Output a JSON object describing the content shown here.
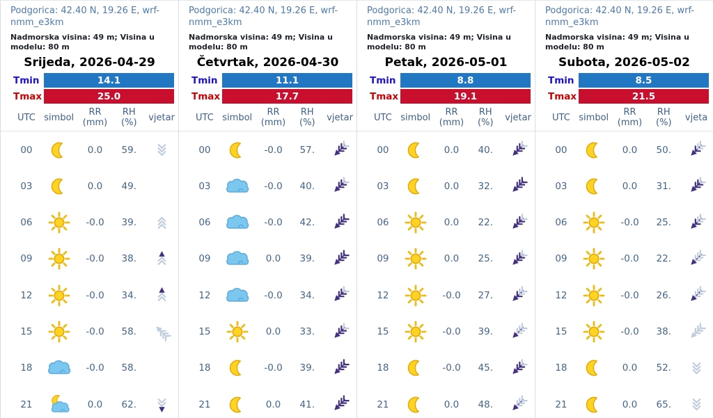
{
  "labels": {
    "location": "Podgorica: 42.40 N, 19.26 E, wrf-nmm_e3km",
    "elevation": "Nadmorska visina: 49 m; Visina u modelu: 80 m",
    "tmin": "Tmin",
    "tmax": "Tmax",
    "utc": "UTC",
    "symbol": "simbol",
    "rr_line1": "RR",
    "rr_line2": "(mm)",
    "rh_line1": "RH",
    "rh_line2": "(%)"
  },
  "colors": {
    "location_text": "#4d79ad",
    "tmin_label": "#1a12cc",
    "tmax_label": "#cc0000",
    "tmin_bar": "#2277c3",
    "tmax_bar": "#c8102e",
    "table_text": "#44658a",
    "sun_fill": "#ffd321",
    "sun_stroke": "#e2a90b",
    "sun_ray": "#eebb10",
    "cloud_fill": "#7cc7ef",
    "cloud_stroke": "#58abdc",
    "wind_light": "#bfccdd",
    "wind_dark": "#43307e"
  },
  "days": [
    {
      "title": "Srijeda, 2026-04-29",
      "tmin": "14.1",
      "tmax": "25.0",
      "wind_header": "vjetar",
      "rows": [
        {
          "utc": "00",
          "icon": "moon",
          "rr": "0.0",
          "rh": "59.",
          "wind": {
            "dir": 180,
            "shaft": false,
            "head": null,
            "feathers": [
              "light",
              "light",
              "light"
            ]
          }
        },
        {
          "utc": "03",
          "icon": "moon",
          "rr": "0.0",
          "rh": "49.",
          "wind": null
        },
        {
          "utc": "06",
          "icon": "sun",
          "rr": "-0.0",
          "rh": "39.",
          "wind": {
            "dir": 0,
            "shaft": false,
            "head": null,
            "feathers": [
              "light",
              "light",
              "light"
            ]
          }
        },
        {
          "utc": "09",
          "icon": "sun",
          "rr": "-0.0",
          "rh": "38.",
          "wind": {
            "dir": 0,
            "shaft": false,
            "head": "dark",
            "feathers": [
              "light",
              "light"
            ]
          }
        },
        {
          "utc": "12",
          "icon": "sun",
          "rr": "-0.0",
          "rh": "34.",
          "wind": {
            "dir": 0,
            "shaft": false,
            "head": "dark",
            "feathers": [
              "light",
              "light"
            ]
          }
        },
        {
          "utc": "15",
          "icon": "sun",
          "rr": "-0.0",
          "rh": "58.",
          "wind": {
            "dir": 315,
            "shaft": true,
            "head": "light",
            "feathers": [
              "light",
              "light",
              "light"
            ]
          }
        },
        {
          "utc": "18",
          "icon": "cloud",
          "rr": "-0.0",
          "rh": "58.",
          "wind": null
        },
        {
          "utc": "21",
          "icon": "moon-cloud",
          "rr": "0.0",
          "rh": "62.",
          "wind": {
            "dir": 180,
            "shaft": false,
            "head": "dark",
            "feathers": [
              "light",
              "light"
            ]
          }
        }
      ]
    },
    {
      "title": "Četvrtak, 2026-04-30",
      "tmin": "11.1",
      "tmax": "17.7",
      "wind_header": "vjetar",
      "rows": [
        {
          "utc": "00",
          "icon": "moon",
          "rr": "-0.0",
          "rh": "57.",
          "wind": {
            "dir": 225,
            "shaft": true,
            "head": "dark",
            "feathers": [
              "light",
              "dark",
              "dark"
            ]
          }
        },
        {
          "utc": "03",
          "icon": "cloud",
          "rr": "-0.0",
          "rh": "40.",
          "wind": {
            "dir": 225,
            "shaft": true,
            "head": "dark",
            "feathers": [
              "light",
              "dark",
              "dark"
            ]
          }
        },
        {
          "utc": "06",
          "icon": "cloud",
          "rr": "-0.0",
          "rh": "42.",
          "wind": {
            "dir": 225,
            "shaft": true,
            "head": "dark",
            "feathers": [
              "dark",
              "dark",
              "dark"
            ]
          }
        },
        {
          "utc": "09",
          "icon": "cloud",
          "rr": "0.0",
          "rh": "39.",
          "wind": {
            "dir": 225,
            "shaft": true,
            "head": "dark",
            "feathers": [
              "dark",
              "dark",
              "dark"
            ]
          }
        },
        {
          "utc": "12",
          "icon": "cloud",
          "rr": "-0.0",
          "rh": "34.",
          "wind": {
            "dir": 225,
            "shaft": true,
            "head": "dark",
            "feathers": [
              "light",
              "dark",
              "dark"
            ]
          }
        },
        {
          "utc": "15",
          "icon": "sun",
          "rr": "0.0",
          "rh": "33.",
          "wind": {
            "dir": 225,
            "shaft": true,
            "head": "dark",
            "feathers": [
              "light",
              "dark",
              "dark"
            ]
          }
        },
        {
          "utc": "18",
          "icon": "moon",
          "rr": "-0.0",
          "rh": "39.",
          "wind": {
            "dir": 225,
            "shaft": true,
            "head": "dark",
            "feathers": [
              "dark",
              "dark",
              "dark"
            ]
          }
        },
        {
          "utc": "21",
          "icon": "moon",
          "rr": "0.0",
          "rh": "41.",
          "wind": {
            "dir": 225,
            "shaft": true,
            "head": "dark",
            "feathers": [
              "dark",
              "dark",
              "dark"
            ]
          }
        }
      ]
    },
    {
      "title": "Petak, 2026-05-01",
      "tmin": "8.8",
      "tmax": "19.1",
      "wind_header": "vjetar",
      "rows": [
        {
          "utc": "00",
          "icon": "moon",
          "rr": "0.0",
          "rh": "40.",
          "wind": {
            "dir": 225,
            "shaft": true,
            "head": "dark",
            "feathers": [
              "light",
              "dark",
              "dark"
            ]
          }
        },
        {
          "utc": "03",
          "icon": "moon",
          "rr": "0.0",
          "rh": "32.",
          "wind": {
            "dir": 225,
            "shaft": true,
            "head": "dark",
            "feathers": [
              "dark",
              "dark",
              "dark"
            ]
          }
        },
        {
          "utc": "06",
          "icon": "sun",
          "rr": "0.0",
          "rh": "22.",
          "wind": {
            "dir": 225,
            "shaft": true,
            "head": "dark",
            "feathers": [
              "light",
              "dark",
              "dark"
            ]
          }
        },
        {
          "utc": "09",
          "icon": "sun",
          "rr": "0.0",
          "rh": "25.",
          "wind": {
            "dir": 225,
            "shaft": true,
            "head": "dark",
            "feathers": [
              "light",
              "dark",
              "dark"
            ]
          }
        },
        {
          "utc": "12",
          "icon": "sun",
          "rr": "-0.0",
          "rh": "27.",
          "wind": {
            "dir": 225,
            "shaft": true,
            "head": "dark",
            "feathers": [
              "light",
              "light",
              "dark"
            ]
          }
        },
        {
          "utc": "15",
          "icon": "sun",
          "rr": "-0.0",
          "rh": "39.",
          "wind": {
            "dir": 225,
            "shaft": true,
            "head": "dark",
            "feathers": [
              "light",
              "light",
              "light"
            ]
          }
        },
        {
          "utc": "18",
          "icon": "moon",
          "rr": "-0.0",
          "rh": "45.",
          "wind": {
            "dir": 225,
            "shaft": true,
            "head": "dark",
            "feathers": [
              "light",
              "dark",
              "dark"
            ]
          }
        },
        {
          "utc": "21",
          "icon": "moon",
          "rr": "0.0",
          "rh": "48.",
          "wind": {
            "dir": 225,
            "shaft": true,
            "head": "dark",
            "feathers": [
              "light",
              "light",
              "light"
            ]
          }
        }
      ]
    },
    {
      "title": "Subota, 2026-05-02",
      "tmin": "8.5",
      "tmax": "21.5",
      "wind_header": "vjeta",
      "rows": [
        {
          "utc": "00",
          "icon": "moon",
          "rr": "0.0",
          "rh": "50.",
          "wind": {
            "dir": 225,
            "shaft": true,
            "head": "dark",
            "feathers": [
              "light",
              "light",
              "dark"
            ]
          }
        },
        {
          "utc": "03",
          "icon": "moon",
          "rr": "0.0",
          "rh": "31.",
          "wind": {
            "dir": 225,
            "shaft": true,
            "head": "dark",
            "feathers": [
              "light",
              "dark",
              "dark"
            ]
          }
        },
        {
          "utc": "06",
          "icon": "sun",
          "rr": "-0.0",
          "rh": "25.",
          "wind": {
            "dir": 225,
            "shaft": true,
            "head": "dark",
            "feathers": [
              "light",
              "light",
              "dark"
            ]
          }
        },
        {
          "utc": "09",
          "icon": "sun",
          "rr": "-0.0",
          "rh": "22.",
          "wind": {
            "dir": 225,
            "shaft": true,
            "head": "dark",
            "feathers": [
              "light",
              "light",
              "light"
            ]
          }
        },
        {
          "utc": "12",
          "icon": "sun",
          "rr": "-0.0",
          "rh": "26.",
          "wind": {
            "dir": 225,
            "shaft": true,
            "head": "dark",
            "feathers": [
              "light",
              "light",
              "light"
            ]
          }
        },
        {
          "utc": "15",
          "icon": "sun",
          "rr": "-0.0",
          "rh": "38.",
          "wind": {
            "dir": 225,
            "shaft": true,
            "head": "light",
            "feathers": [
              "light",
              "light",
              "light"
            ]
          }
        },
        {
          "utc": "18",
          "icon": "moon",
          "rr": "0.0",
          "rh": "52.",
          "wind": {
            "dir": 180,
            "shaft": false,
            "head": null,
            "feathers": [
              "light",
              "light",
              "light"
            ]
          }
        },
        {
          "utc": "21",
          "icon": "moon",
          "rr": "0.0",
          "rh": "65.",
          "wind": {
            "dir": 180,
            "shaft": false,
            "head": null,
            "feathers": [
              "light",
              "light",
              "light"
            ]
          }
        }
      ]
    }
  ]
}
